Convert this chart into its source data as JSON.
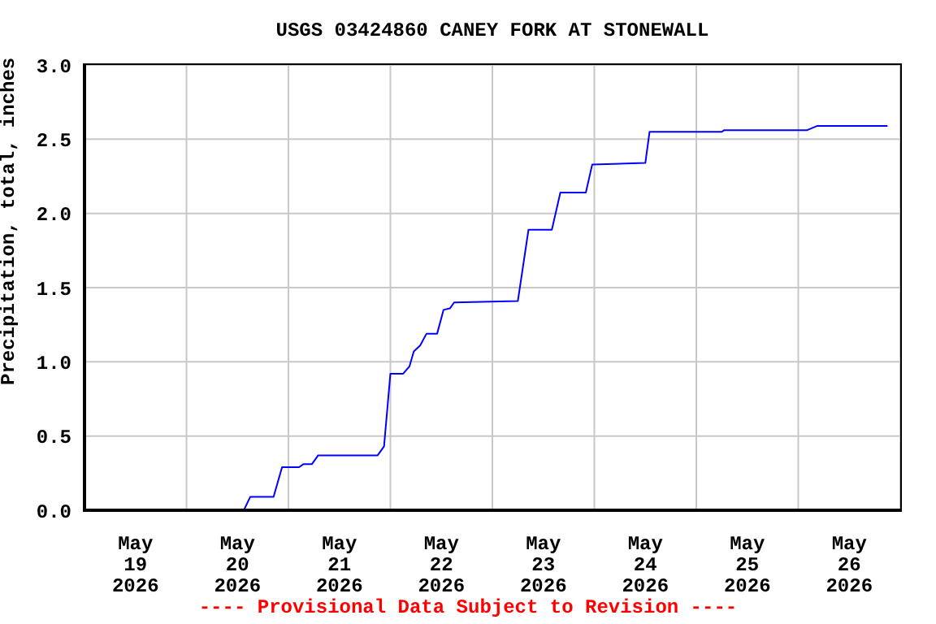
{
  "chart_data": {
    "type": "line",
    "title": "USGS 03424860 CANEY FORK AT STONEWALL",
    "ylabel": "Precipitation, total, inches",
    "annotations": [
      "---- Provisional Data Subject to Revision ----"
    ],
    "x": [
      "2026-05-19T00:00",
      "2026-05-20T13:30",
      "2026-05-20T15:00",
      "2026-05-20T20:30",
      "2026-05-20T22:30",
      "2026-05-21T02:30",
      "2026-05-21T03:30",
      "2026-05-21T05:30",
      "2026-05-21T07:00",
      "2026-05-21T21:00",
      "2026-05-21T22:30",
      "2026-05-22T00:00",
      "2026-05-22T03:00",
      "2026-05-22T04:30",
      "2026-05-22T05:30",
      "2026-05-22T07:00",
      "2026-05-22T08:30",
      "2026-05-22T11:00",
      "2026-05-22T12:30",
      "2026-05-22T14:00",
      "2026-05-22T15:00",
      "2026-05-23T06:00",
      "2026-05-23T08:30",
      "2026-05-23T14:00",
      "2026-05-23T16:00",
      "2026-05-23T22:00",
      "2026-05-23T23:30",
      "2026-05-24T12:00",
      "2026-05-24T13:00",
      "2026-05-25T06:00",
      "2026-05-25T06:30",
      "2026-05-26T02:00",
      "2026-05-26T04:30",
      "2026-05-26T21:00"
    ],
    "series": [
      {
        "color": "#0000ff",
        "values": [
          0,
          0,
          0.09,
          0.09,
          0.29,
          0.29,
          0.31,
          0.31,
          0.37,
          0.37,
          0.43,
          0.92,
          0.92,
          0.97,
          1.07,
          1.11,
          1.19,
          1.19,
          1.35,
          1.36,
          1.4,
          1.41,
          1.89,
          1.89,
          2.14,
          2.14,
          2.33,
          2.34,
          2.55,
          2.55,
          2.56,
          2.56,
          2.59,
          2.59
        ]
      }
    ],
    "xlim": [
      "2026-05-19T00:00",
      "2026-05-27T00:00"
    ],
    "xticks": [
      {
        "value": "2026-05-19T00:00",
        "label": null
      },
      {
        "value": "2026-05-19T12:00",
        "label": "May\n19\n2026"
      },
      {
        "value": "2026-05-20T00:00",
        "label": null
      },
      {
        "value": "2026-05-20T12:00",
        "label": "May\n20\n2026"
      },
      {
        "value": "2026-05-21T00:00",
        "label": null
      },
      {
        "value": "2026-05-21T12:00",
        "label": "May\n21\n2026"
      },
      {
        "value": "2026-05-22T00:00",
        "label": null
      },
      {
        "value": "2026-05-22T12:00",
        "label": "May\n22\n2026"
      },
      {
        "value": "2026-05-23T00:00",
        "label": null
      },
      {
        "value": "2026-05-23T12:00",
        "label": "May\n23\n2026"
      },
      {
        "value": "2026-05-24T00:00",
        "label": null
      },
      {
        "value": "2026-05-24T12:00",
        "label": "May\n24\n2026"
      },
      {
        "value": "2026-05-25T00:00",
        "label": null
      },
      {
        "value": "2026-05-25T12:00",
        "label": "May\n25\n2026"
      },
      {
        "value": "2026-05-26T00:00",
        "label": null
      },
      {
        "value": "2026-05-26T12:00",
        "label": "May\n26\n2026"
      },
      {
        "value": "2026-05-27T00:00",
        "label": null
      }
    ],
    "ylim": [
      0,
      3
    ],
    "yticks": [
      {
        "value": 0,
        "label": "0.0"
      },
      {
        "value": 0.5,
        "label": "0.5"
      },
      {
        "value": 1,
        "label": "1.0"
      },
      {
        "value": 1.5,
        "label": "1.5"
      },
      {
        "value": 2,
        "label": "2.0"
      },
      {
        "value": 2.5,
        "label": "2.5"
      },
      {
        "value": 3,
        "label": "3.0"
      }
    ],
    "grid": true
  }
}
